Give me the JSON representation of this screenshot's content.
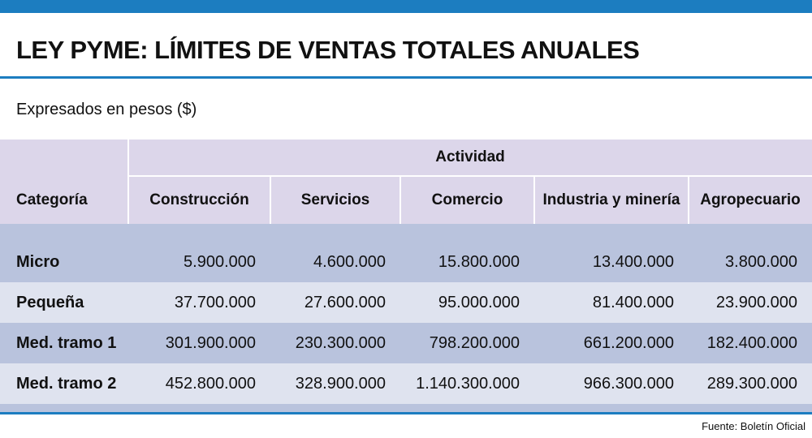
{
  "header": {
    "title": "LEY PYME: LÍMITES DE VENTAS TOTALES ANUALES",
    "subtitle": "Expresados en pesos ($)"
  },
  "table": {
    "group_header": "Actividad",
    "columns": [
      "Categoría",
      "Construcción",
      "Servicios",
      "Comercio",
      "Industria y minería",
      "Agropecuario"
    ],
    "rows": [
      [
        "Micro",
        "5.900.000",
        "4.600.000",
        "15.800.000",
        "13.400.000",
        "3.800.000"
      ],
      [
        "Pequeña",
        "37.700.000",
        "27.600.000",
        "95.000.000",
        "81.400.000",
        "23.900.000"
      ],
      [
        "Med. tramo 1",
        "301.900.000",
        "230.300.000",
        "798.200.000",
        "661.200.000",
        "182.400.000"
      ],
      [
        "Med. tramo 2",
        "452.800.000",
        "328.900.000",
        "1.140.300.000",
        "966.300.000",
        "289.300.000"
      ]
    ]
  },
  "footer": {
    "source": "Fuente: Boletín Oficial"
  }
}
